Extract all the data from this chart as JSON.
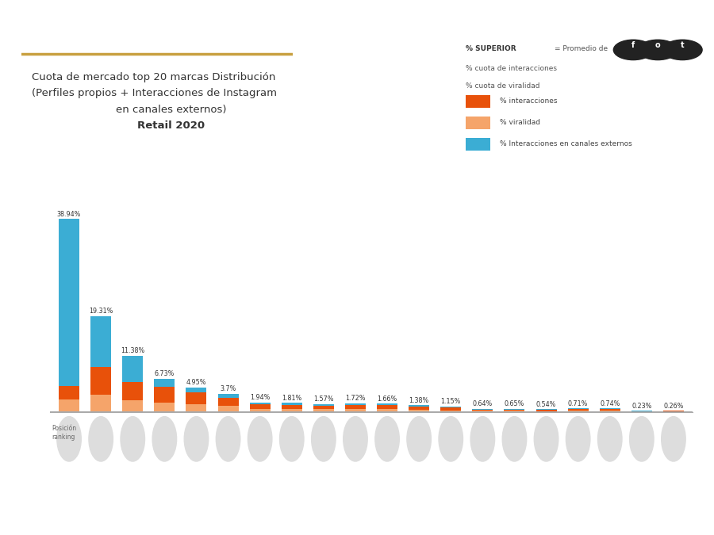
{
  "totals": [
    38.94,
    19.31,
    11.38,
    6.73,
    4.95,
    3.7,
    1.94,
    1.81,
    1.57,
    1.72,
    1.66,
    1.38,
    1.15,
    0.64,
    0.65,
    0.54,
    0.71,
    0.74,
    0.23,
    0.26
  ],
  "interacciones": [
    2.8,
    5.5,
    3.8,
    3.2,
    2.3,
    1.6,
    0.9,
    0.85,
    0.75,
    0.8,
    0.78,
    0.65,
    0.55,
    0.3,
    0.3,
    0.25,
    0.34,
    0.35,
    0.11,
    0.12
  ],
  "viralidad": [
    2.5,
    3.5,
    2.3,
    1.8,
    1.6,
    1.2,
    0.65,
    0.6,
    0.52,
    0.62,
    0.58,
    0.45,
    0.35,
    0.2,
    0.21,
    0.16,
    0.23,
    0.25,
    0.07,
    0.08
  ],
  "externos": [
    33.64,
    10.31,
    5.28,
    1.73,
    1.05,
    0.9,
    0.39,
    0.36,
    0.3,
    0.3,
    0.3,
    0.28,
    0.25,
    0.14,
    0.14,
    0.13,
    0.14,
    0.14,
    0.05,
    0.06
  ],
  "color_interacciones": "#E8510A",
  "color_viralidad": "#F5A46A",
  "color_externos": "#3BADD4",
  "background_color": "#FFFFFF",
  "legend_bg": "#EBEBEB",
  "title_line1": "Cuota de mercado top 20 marcas Distribución",
  "title_line2": "(Perfiles propios + Interacciones de Instagram",
  "title_line3": "en canales externos)",
  "title_line4": "Retail 2020",
  "gold_line_color": "#C8A040",
  "legend_interacciones": "% interacciones",
  "legend_viralidad": "% viralidad",
  "legend_externos": "% Interacciones en canales externos"
}
